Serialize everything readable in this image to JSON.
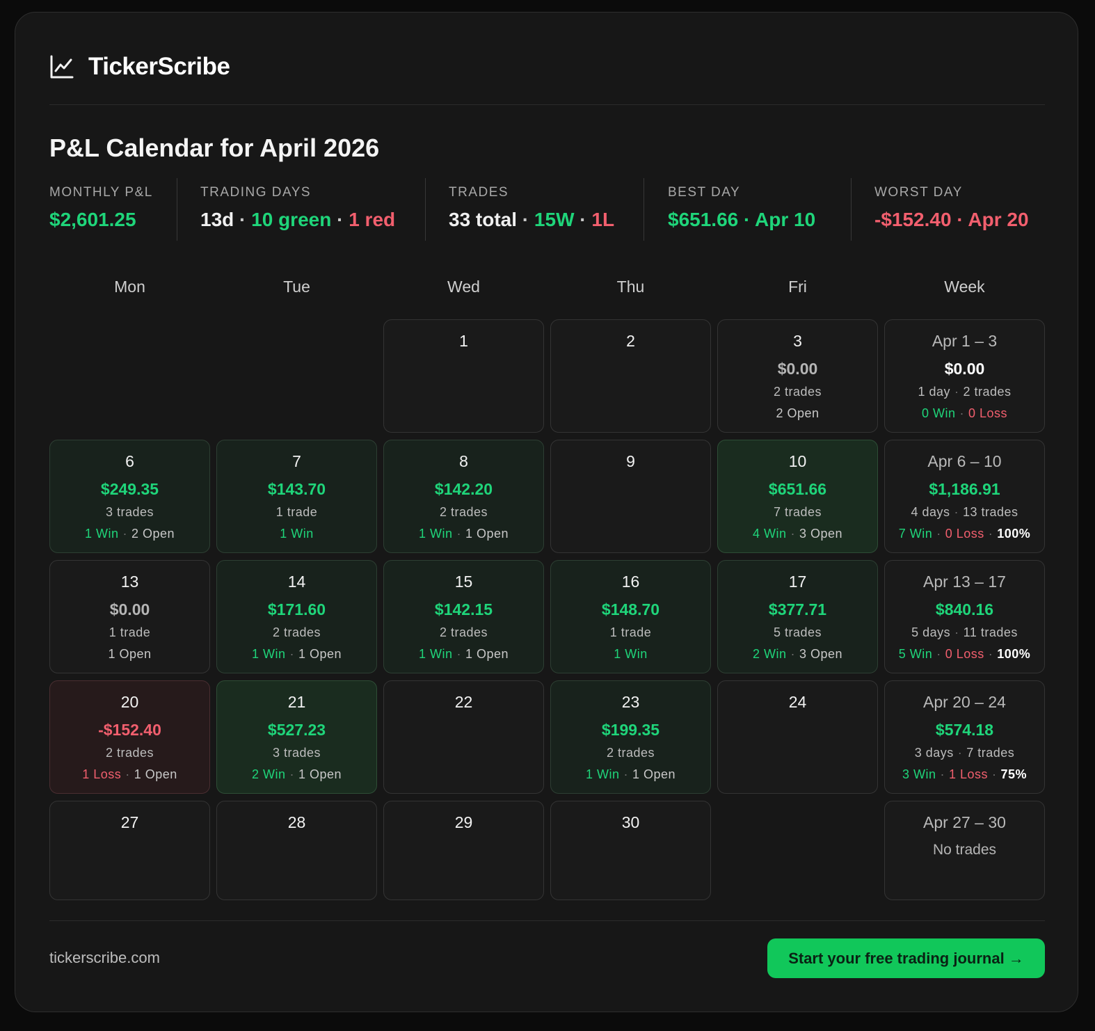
{
  "brand": {
    "name": "TickerScribe",
    "icon": "line-chart-icon"
  },
  "title": "P&L Calendar for April 2026",
  "colors": {
    "green": "#1fd57a",
    "red": "#f25f6e",
    "cta": "#11c75a"
  },
  "stats": {
    "monthly_pnl": {
      "label": "MONTHLY P&L",
      "value": "$2,601.25"
    },
    "trading_days": {
      "label": "TRADING DAYS",
      "days": "13d",
      "green": "10 green",
      "red": "1 red"
    },
    "trades": {
      "label": "TRADES",
      "total": "33 total",
      "wins": "15W",
      "losses": "1L"
    },
    "best_day": {
      "label": "BEST DAY",
      "value": "$651.66 · Apr 10"
    },
    "worst_day": {
      "label": "WORST DAY",
      "value": "-$152.40 · Apr 20"
    }
  },
  "weekday_headers": [
    "Mon",
    "Tue",
    "Wed",
    "Thu",
    "Fri",
    "Week"
  ],
  "weeks": [
    {
      "days": [
        null,
        null,
        {
          "day": "1"
        },
        {
          "day": "2"
        },
        {
          "day": "3",
          "pnl": "$0.00",
          "tone": "zero",
          "trades": "2 trades",
          "open": "2 Open"
        }
      ],
      "summary": {
        "range": "Apr 1 – 3",
        "pnl": "$0.00",
        "tone": "neutral",
        "days": "1 day",
        "trades": "2 trades",
        "win": "0 Win",
        "loss": "0 Loss"
      }
    },
    {
      "days": [
        {
          "day": "6",
          "pnl": "$249.35",
          "tone": "green",
          "bg": "light",
          "trades": "3 trades",
          "win": "1 Win",
          "open": "2 Open"
        },
        {
          "day": "7",
          "pnl": "$143.70",
          "tone": "green",
          "bg": "light",
          "trades": "1 trade",
          "win": "1 Win"
        },
        {
          "day": "8",
          "pnl": "$142.20",
          "tone": "green",
          "bg": "light",
          "trades": "2 trades",
          "win": "1 Win",
          "open": "1 Open"
        },
        {
          "day": "9"
        },
        {
          "day": "10",
          "pnl": "$651.66",
          "tone": "green",
          "bg": "dark",
          "trades": "7 trades",
          "win": "4 Win",
          "open": "3 Open"
        }
      ],
      "summary": {
        "range": "Apr 6 – 10",
        "pnl": "$1,186.91",
        "tone": "green",
        "days": "4 days",
        "trades": "13 trades",
        "win": "7 Win",
        "loss": "0 Loss",
        "pct": "100%"
      }
    },
    {
      "days": [
        {
          "day": "13",
          "pnl": "$0.00",
          "tone": "zero",
          "trades": "1 trade",
          "open": "1 Open"
        },
        {
          "day": "14",
          "pnl": "$171.60",
          "tone": "green",
          "bg": "light",
          "trades": "2 trades",
          "win": "1 Win",
          "open": "1 Open"
        },
        {
          "day": "15",
          "pnl": "$142.15",
          "tone": "green",
          "bg": "light",
          "trades": "2 trades",
          "win": "1 Win",
          "open": "1 Open"
        },
        {
          "day": "16",
          "pnl": "$148.70",
          "tone": "green",
          "bg": "light",
          "trades": "1 trade",
          "win": "1 Win"
        },
        {
          "day": "17",
          "pnl": "$377.71",
          "tone": "green",
          "bg": "light",
          "trades": "5 trades",
          "win": "2 Win",
          "open": "3 Open"
        }
      ],
      "summary": {
        "range": "Apr 13 – 17",
        "pnl": "$840.16",
        "tone": "green",
        "days": "5 days",
        "trades": "11 trades",
        "win": "5 Win",
        "loss": "0 Loss",
        "pct": "100%"
      }
    },
    {
      "days": [
        {
          "day": "20",
          "pnl": "-$152.40",
          "tone": "red",
          "bg": "red",
          "trades": "2 trades",
          "loss": "1 Loss",
          "open": "1 Open"
        },
        {
          "day": "21",
          "pnl": "$527.23",
          "tone": "green",
          "bg": "dark",
          "trades": "3 trades",
          "win": "2 Win",
          "open": "1 Open"
        },
        {
          "day": "22"
        },
        {
          "day": "23",
          "pnl": "$199.35",
          "tone": "green",
          "bg": "light",
          "trades": "2 trades",
          "win": "1 Win",
          "open": "1 Open"
        },
        {
          "day": "24"
        }
      ],
      "summary": {
        "range": "Apr 20 – 24",
        "pnl": "$574.18",
        "tone": "green",
        "days": "3 days",
        "trades": "7 trades",
        "win": "3 Win",
        "loss": "1 Loss",
        "pct": "75%"
      }
    },
    {
      "days": [
        {
          "day": "27"
        },
        {
          "day": "28"
        },
        {
          "day": "29"
        },
        {
          "day": "30"
        },
        null
      ],
      "summary": {
        "range": "Apr 27 – 30",
        "note": "No trades"
      }
    }
  ],
  "footer": {
    "site": "tickerscribe.com",
    "cta": "Start your free trading journal →"
  }
}
